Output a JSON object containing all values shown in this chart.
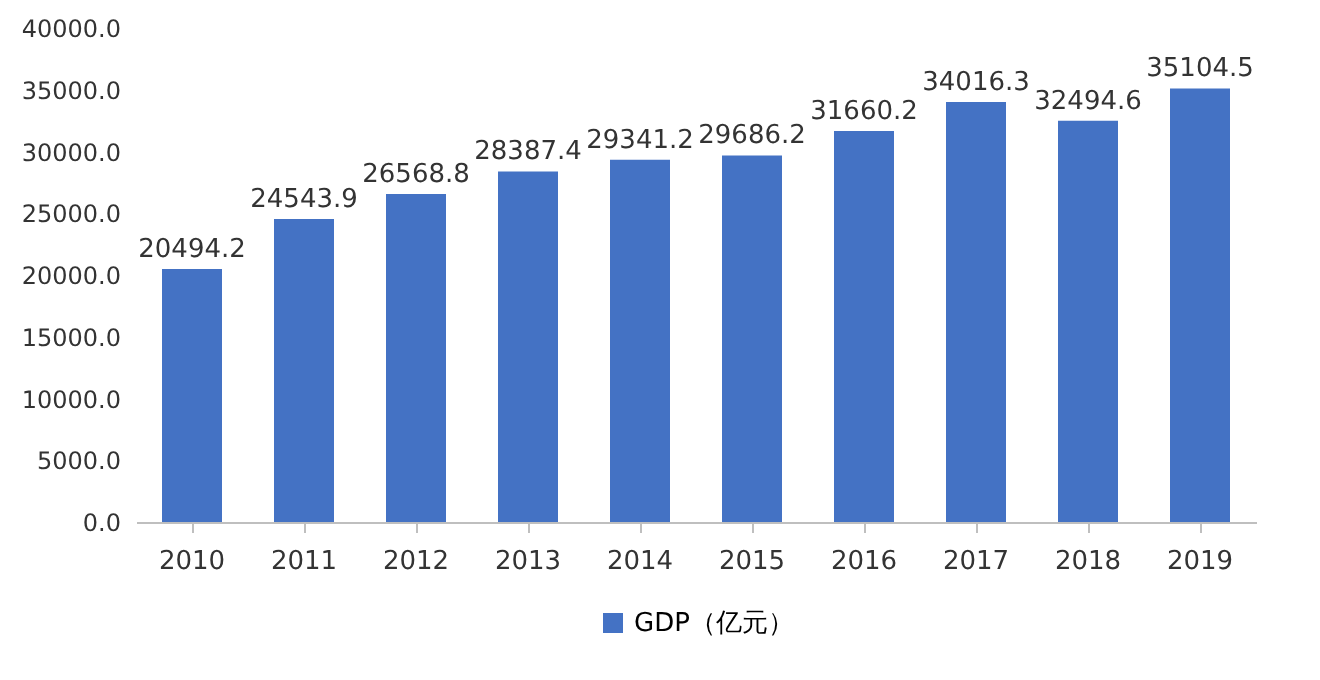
{
  "chart_data": {
    "type": "bar",
    "categories": [
      "2010",
      "2011",
      "2012",
      "2013",
      "2014",
      "2015",
      "2016",
      "2017",
      "2018",
      "2019"
    ],
    "series": [
      {
        "name": "GDP（亿元）",
        "color": "#4472c4",
        "values": [
          20494.2,
          24543.9,
          26568.8,
          28387.4,
          29341.2,
          29686.2,
          31660.2,
          34016.3,
          32494.6,
          35104.5
        ]
      }
    ],
    "ylim": [
      0,
      40000
    ],
    "yticks": [
      {
        "value": 0,
        "label": "0.0"
      },
      {
        "value": 5000,
        "label": "5000.0"
      },
      {
        "value": 10000,
        "label": "10000.0"
      },
      {
        "value": 15000,
        "label": "15000.0"
      },
      {
        "value": 20000,
        "label": "20000.0"
      },
      {
        "value": 25000,
        "label": "25000.0"
      },
      {
        "value": 30000,
        "label": "30000.0"
      },
      {
        "value": 35000,
        "label": "35000.0"
      },
      {
        "value": 40000,
        "label": "40000.0"
      }
    ],
    "data_labels": true,
    "grid": false,
    "legend": "bottom"
  }
}
